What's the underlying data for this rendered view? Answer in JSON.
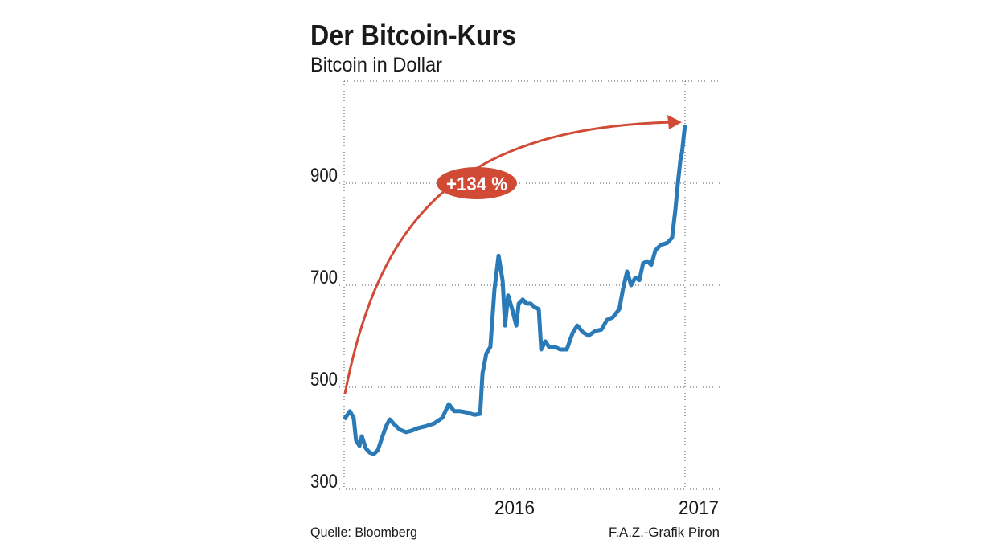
{
  "chart_data": {
    "type": "line",
    "title": "Der Bitcoin-Kurs",
    "subtitle": "Bitcoin in Dollar",
    "source": "Quelle: Bloomberg",
    "credit": "F.A.Z.-Grafik Piron",
    "annotation": "+134 %",
    "xlim": [
      2016,
      2017
    ],
    "xticks": [
      2016,
      2017
    ],
    "ylim": [
      300,
      1100
    ],
    "yticks": [
      300,
      500,
      700,
      900
    ],
    "grid": true,
    "series": [
      {
        "name": "Bitcoin",
        "color": "#2a7ab8",
        "x": [
          2016,
          2016.017,
          2016.028,
          2016.035,
          2016.045,
          2016.052,
          2016.064,
          2016.075,
          2016.087,
          2016.099,
          2016.111,
          2016.123,
          2016.134,
          2016.146,
          2016.163,
          2016.182,
          2016.198,
          2016.217,
          2016.241,
          2016.264,
          2016.288,
          2016.307,
          2016.323,
          2016.34,
          2016.358,
          2016.382,
          2016.399,
          2016.406,
          2016.417,
          2016.429,
          2016.441,
          2016.453,
          2016.465,
          2016.472,
          2016.481,
          2016.493,
          2016.505,
          2016.512,
          2016.524,
          2016.535,
          2016.547,
          2016.559,
          2016.571,
          2016.578,
          2016.59,
          2016.601,
          2016.618,
          2016.634,
          2016.653,
          2016.67,
          2016.684,
          2016.7,
          2016.717,
          2016.736,
          2016.755,
          2016.771,
          2016.788,
          2016.807,
          2016.818,
          2016.83,
          2016.842,
          2016.854,
          2016.866,
          2016.877,
          2016.889,
          2016.901,
          2016.913,
          2016.929,
          2016.948,
          2016.962,
          2016.972,
          2016.979,
          2016.986,
          2016.991,
          2017
        ],
        "values": [
          437,
          453,
          440,
          396,
          385,
          404,
          380,
          372,
          369,
          377,
          401,
          424,
          437,
          428,
          417,
          412,
          415,
          420,
          424,
          429,
          440,
          467,
          453,
          453,
          451,
          446,
          448,
          527,
          566,
          579,
          692,
          758,
          708,
          621,
          680,
          653,
          621,
          664,
          672,
          664,
          664,
          657,
          653,
          574,
          590,
          579,
          579,
          574,
          574,
          606,
          621,
          608,
          601,
          610,
          613,
          632,
          637,
          653,
          692,
          727,
          700,
          715,
          710,
          743,
          747,
          740,
          768,
          779,
          783,
          793,
          850,
          900,
          944,
          960,
          1015
        ]
      }
    ]
  }
}
